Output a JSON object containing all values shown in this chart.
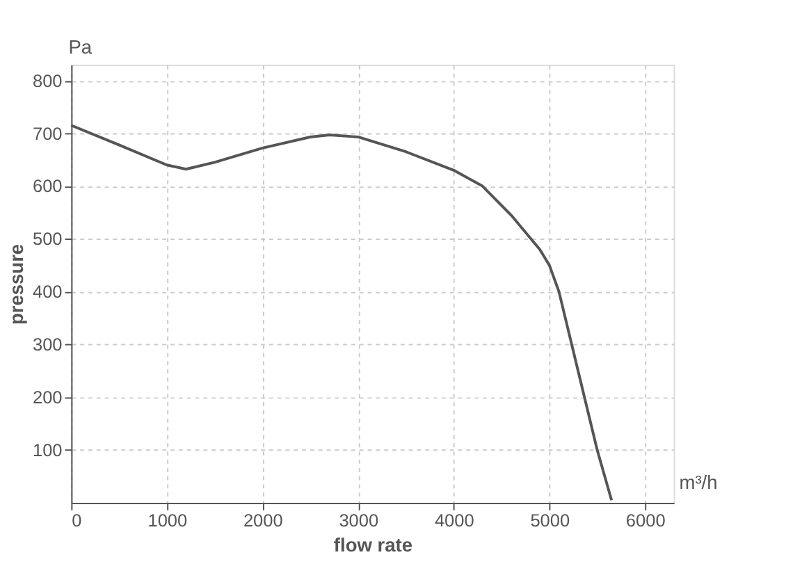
{
  "chart_data": {
    "type": "line",
    "xlabel": "flow rate",
    "ylabel": "pressure",
    "annotations": [
      "Pa",
      "m³/h"
    ],
    "x": [
      0,
      500,
      1000,
      1200,
      1500,
      2000,
      2500,
      2700,
      3000,
      3500,
      4000,
      4300,
      4600,
      4900,
      5000,
      5100,
      5300,
      5500,
      5650
    ],
    "series": [
      {
        "color": "#555555",
        "values": [
          715,
          678,
          640,
          632,
          645,
          672,
          693,
          697,
          693,
          665,
          630,
          600,
          545,
          480,
          450,
          400,
          250,
          100,
          5
        ]
      }
    ],
    "xlim": [
      0,
      6300
    ],
    "ylim": [
      0,
      830
    ],
    "xticks": [
      0,
      1000,
      2000,
      3000,
      4000,
      5000,
      6000
    ],
    "yticks": [
      100,
      200,
      300,
      400,
      500,
      600,
      700,
      800
    ],
    "grid": true,
    "marker": "none",
    "line_style": "solid"
  }
}
